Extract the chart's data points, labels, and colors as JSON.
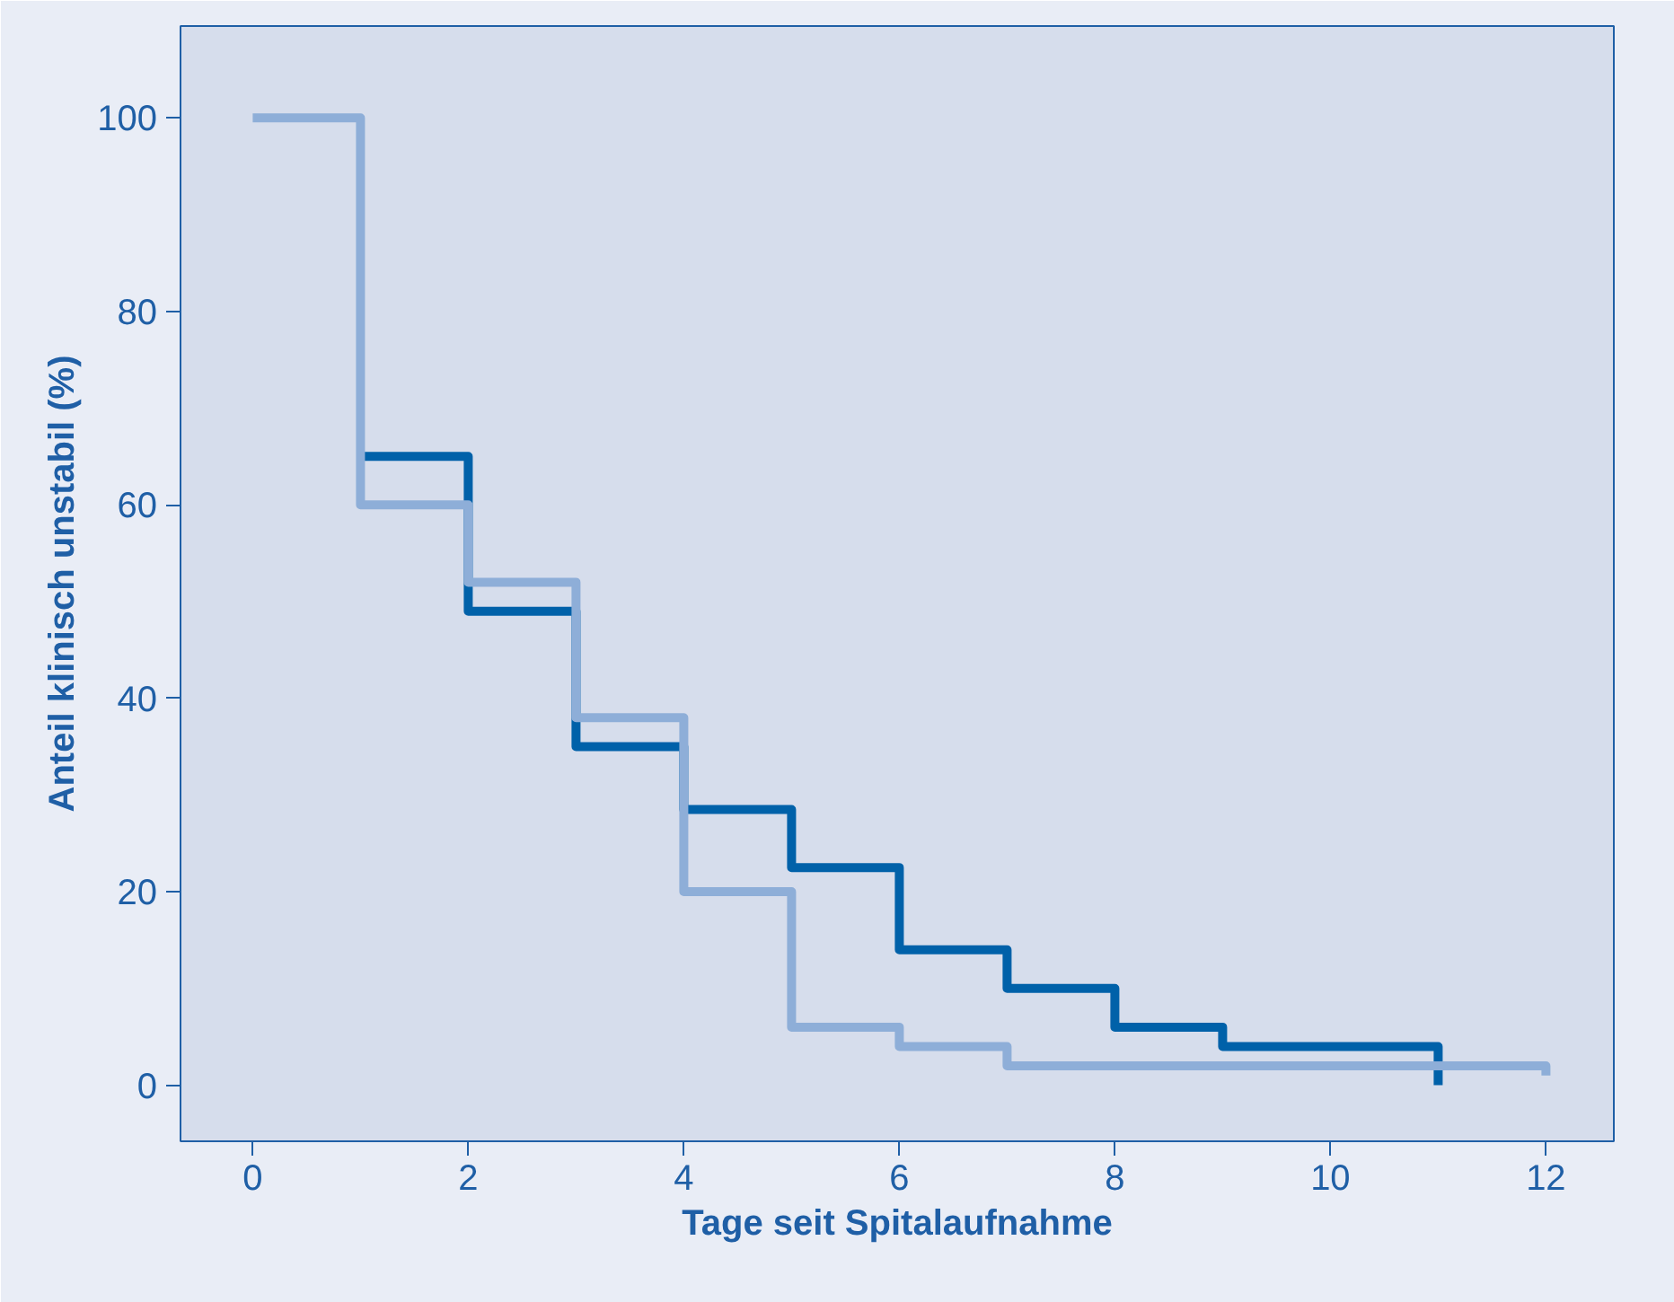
{
  "chart_data": {
    "type": "step",
    "xlabel": "Tage seit Spitalaufnahme",
    "ylabel": "Anteil klinisch unstabil (%)",
    "xlim": [
      -0.67,
      12.63
    ],
    "ylim": [
      -5.8,
      109.5
    ],
    "xticks": [
      0,
      2,
      4,
      6,
      8,
      10,
      12
    ],
    "yticks": [
      0,
      20,
      40,
      60,
      80,
      100
    ],
    "grid": false,
    "line_style": "solid",
    "marker": "none",
    "series": [
      {
        "color": "#0061a9",
        "x": [
          1,
          2,
          3,
          4,
          5,
          6,
          7,
          8,
          9,
          11
        ],
        "values": [
          65,
          49,
          35,
          28.5,
          22.5,
          14,
          10,
          6,
          4,
          0
        ]
      },
      {
        "color": "#8eaed8",
        "x": [
          0,
          1,
          2,
          3,
          4,
          5,
          6,
          7,
          12
        ],
        "values": [
          100,
          60,
          52,
          38,
          20,
          6,
          4,
          2,
          1
        ]
      }
    ]
  }
}
